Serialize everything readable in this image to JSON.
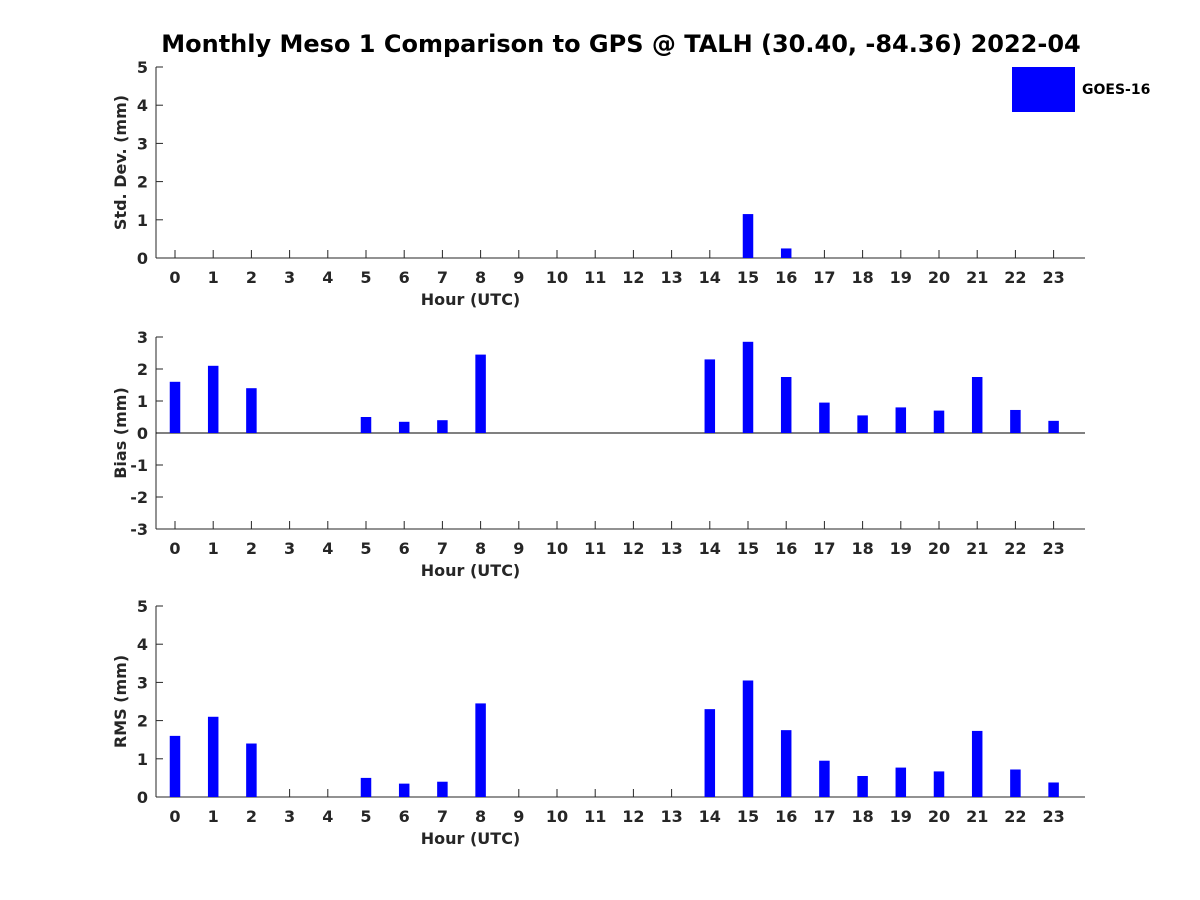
{
  "title": "Monthly Meso 1 Comparison to GPS @ TALH (30.40, -84.36) 2022-04",
  "legend": {
    "label": "GOES-16",
    "color": "#0000ff"
  },
  "chart_data": [
    {
      "type": "bar",
      "ylabel": "Std. Dev. (mm)",
      "xlabel": "Hour (UTC)",
      "ylim": [
        0,
        5
      ],
      "yticks": [
        0,
        1,
        2,
        3,
        4,
        5
      ],
      "categories": [
        "0",
        "1",
        "2",
        "3",
        "4",
        "5",
        "6",
        "7",
        "8",
        "9",
        "10",
        "11",
        "12",
        "13",
        "14",
        "15",
        "16",
        "17",
        "18",
        "19",
        "20",
        "21",
        "22",
        "23"
      ],
      "series": [
        {
          "name": "GOES-16",
          "values": [
            null,
            null,
            null,
            null,
            null,
            null,
            null,
            null,
            null,
            null,
            null,
            null,
            null,
            null,
            null,
            1.15,
            0.25,
            null,
            null,
            null,
            null,
            null,
            null,
            null
          ]
        }
      ]
    },
    {
      "type": "bar",
      "ylabel": "Bias (mm)",
      "xlabel": "Hour (UTC)",
      "ylim": [
        -3,
        3
      ],
      "yticks": [
        -3,
        -2,
        -1,
        0,
        1,
        2,
        3
      ],
      "zero_line": true,
      "categories": [
        "0",
        "1",
        "2",
        "3",
        "4",
        "5",
        "6",
        "7",
        "8",
        "9",
        "10",
        "11",
        "12",
        "13",
        "14",
        "15",
        "16",
        "17",
        "18",
        "19",
        "20",
        "21",
        "22",
        "23"
      ],
      "series": [
        {
          "name": "GOES-16",
          "values": [
            1.6,
            2.1,
            1.4,
            null,
            null,
            0.5,
            0.35,
            0.4,
            2.45,
            null,
            null,
            null,
            null,
            null,
            2.3,
            2.85,
            1.75,
            0.95,
            0.55,
            0.8,
            0.7,
            1.75,
            0.72,
            0.38
          ]
        }
      ]
    },
    {
      "type": "bar",
      "ylabel": "RMS (mm)",
      "xlabel": "Hour (UTC)",
      "ylim": [
        0,
        5
      ],
      "yticks": [
        0,
        1,
        2,
        3,
        4,
        5
      ],
      "categories": [
        "0",
        "1",
        "2",
        "3",
        "4",
        "5",
        "6",
        "7",
        "8",
        "9",
        "10",
        "11",
        "12",
        "13",
        "14",
        "15",
        "16",
        "17",
        "18",
        "19",
        "20",
        "21",
        "22",
        "23"
      ],
      "series": [
        {
          "name": "GOES-16",
          "values": [
            1.6,
            2.1,
            1.4,
            null,
            null,
            0.5,
            0.35,
            0.4,
            2.45,
            null,
            null,
            null,
            null,
            null,
            2.3,
            3.05,
            1.75,
            0.95,
            0.55,
            0.77,
            0.67,
            1.73,
            0.72,
            0.38
          ]
        }
      ]
    }
  ]
}
